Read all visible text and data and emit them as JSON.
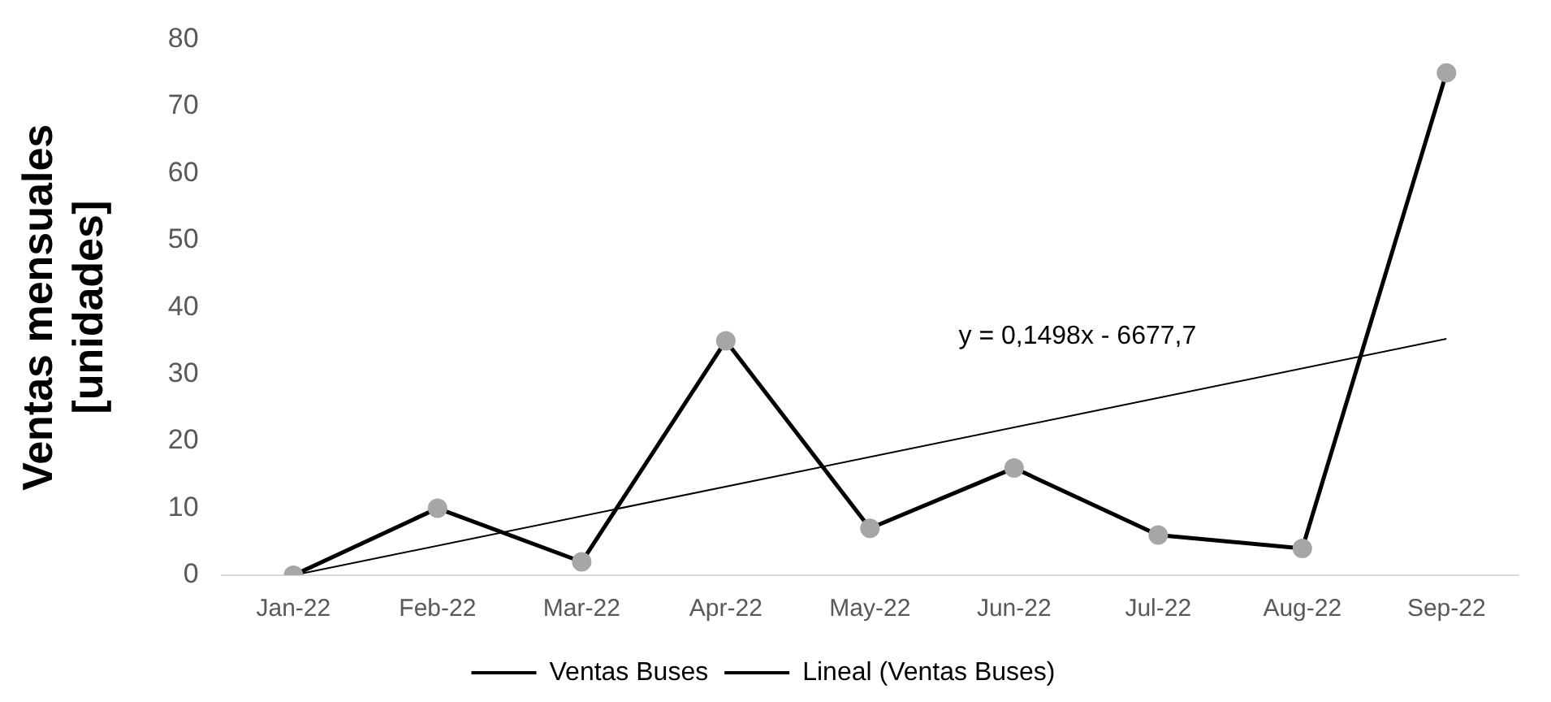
{
  "chart_data": {
    "type": "line",
    "ylabel": "Ventas mensuales\n[unidades]",
    "categories": [
      "Jan-22",
      "Feb-22",
      "Mar-22",
      "Apr-22",
      "May-22",
      "Jun-22",
      "Jul-22",
      "Aug-22",
      "Sep-22"
    ],
    "series": [
      {
        "name": "Ventas Buses",
        "color": "#000000",
        "values": [
          0,
          10,
          2,
          35,
          7,
          16,
          6,
          4,
          75
        ]
      },
      {
        "name": "Lineal (Ventas Buses)",
        "type": "line",
        "color": "#000000",
        "x": [
          "Jan-22",
          "Sep-22"
        ],
        "values": [
          0,
          35.3
        ],
        "marker": "none"
      }
    ],
    "ylim": [
      0,
      80
    ],
    "yticks": [
      0,
      10,
      20,
      30,
      40,
      50,
      60,
      70,
      80
    ],
    "grid": false,
    "legend": "bottom",
    "marker": "circle",
    "line_style": "solid",
    "annotations": [
      "y = 0,1498x - 6677,7"
    ]
  }
}
